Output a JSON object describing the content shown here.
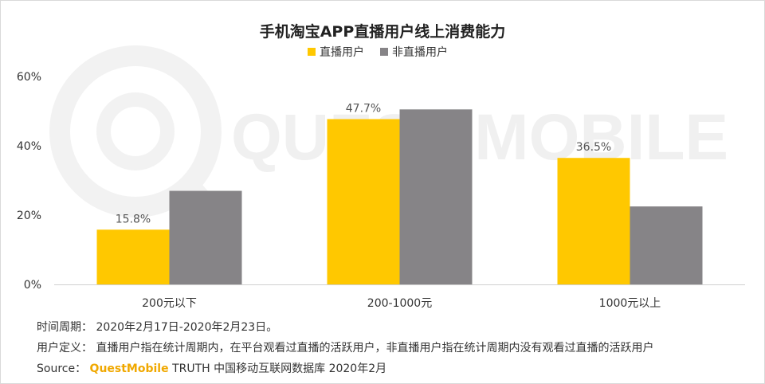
{
  "chart_data": {
    "type": "bar",
    "title": "手机淘宝APP直播用户线上消费能力",
    "categories": [
      "200元以下",
      "200-1000元",
      "1000元以上"
    ],
    "series": [
      {
        "name": "直播用户",
        "values": [
          15.8,
          47.7,
          36.5
        ],
        "labels": [
          "15.8%",
          "47.7%",
          "36.5%"
        ],
        "color": "#FFC800"
      },
      {
        "name": "非直播用户",
        "values": [
          27.0,
          50.5,
          22.5
        ],
        "labels": [
          "",
          "",
          ""
        ],
        "color": "#868487"
      }
    ],
    "ylim": [
      0,
      60
    ],
    "yticks": [
      0,
      20,
      40,
      60
    ],
    "ytick_labels": [
      "0%",
      "20%",
      "40%",
      "60%"
    ],
    "xlabel": "",
    "ylabel": "",
    "legend_position": "top",
    "grid": false
  },
  "watermark": "QUEST MOBILE",
  "notes": {
    "period": "时间周期： 2020年2月17日-2020年2月23日。",
    "definition": "用户定义： 直播用户指在统计周期内，在平台观看过直播的活跃用户，非直播用户指在统计周期内没有观看过直播的活跃用户",
    "source_prefix": "Source：",
    "source_brand": "QuestMobile",
    "source_rest": " TRUTH 中国移动互联网数据库 2020年2月"
  }
}
